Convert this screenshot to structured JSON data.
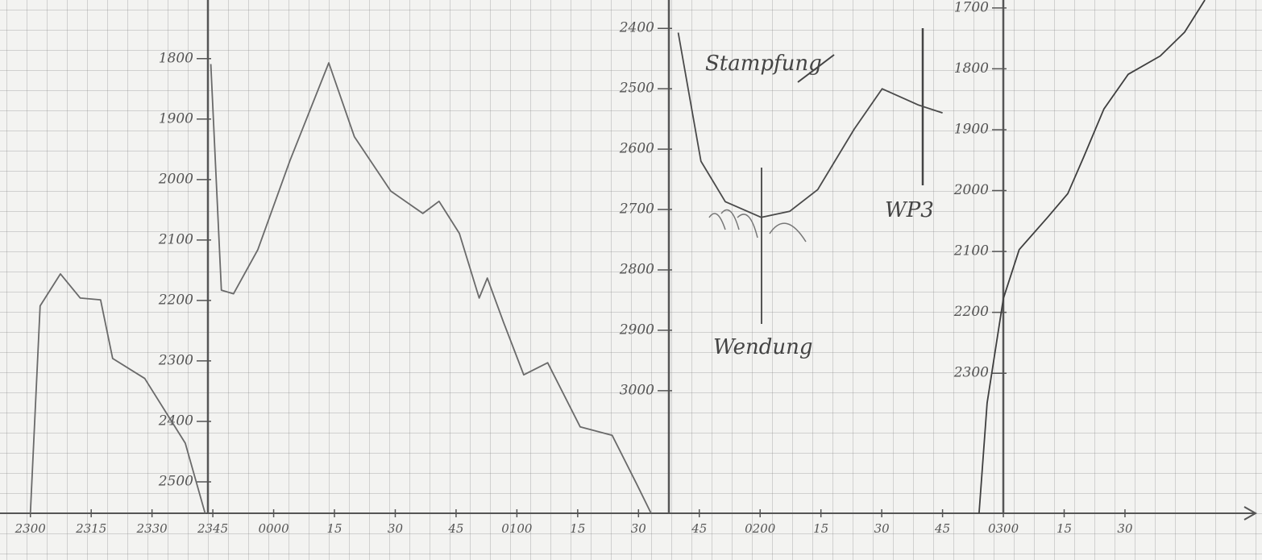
{
  "chart_data": [
    {
      "type": "line",
      "y_reversed": true,
      "color": "#6a6a6a",
      "xlim": [
        -7.5,
        303.8
      ],
      "xticks": [
        {
          "value": 0,
          "label": "2300"
        },
        {
          "value": 15,
          "label": "2315"
        },
        {
          "value": 30,
          "label": "2330"
        },
        {
          "value": 45,
          "label": "2345"
        },
        {
          "value": 60,
          "label": "0000"
        },
        {
          "value": 75,
          "label": "15"
        },
        {
          "value": 90,
          "label": "30"
        },
        {
          "value": 105,
          "label": "45"
        },
        {
          "value": 120,
          "label": "0100"
        },
        {
          "value": 135,
          "label": "15"
        },
        {
          "value": 150,
          "label": "30"
        },
        {
          "value": 165,
          "label": "45"
        },
        {
          "value": 180,
          "label": "0200"
        },
        {
          "value": 195,
          "label": "15"
        },
        {
          "value": 210,
          "label": "30"
        },
        {
          "value": 225,
          "label": "45"
        },
        {
          "value": 240,
          "label": "0300"
        },
        {
          "value": 255,
          "label": "15"
        },
        {
          "value": 270,
          "label": "30"
        }
      ],
      "ylim": [
        1703,
        2552
      ],
      "yticks": [
        1800,
        1900,
        2000,
        2100,
        2200,
        2300,
        2400,
        2500
      ],
      "series": [
        {
          "color": "#6a6a6a",
          "x": [
            0,
            2.4,
            7.4,
            12.3,
            17.3,
            20.3,
            28.2,
            38.2,
            43.1,
            null,
            44.5,
            47.1,
            50.1,
            56.1,
            64.0,
            73.6,
            79.9,
            88.9,
            96.8,
            100.8,
            105.8,
            110.7,
            112.7,
            116.7,
            121.7,
            127.6,
            135.6,
            143.5,
            149.5,
            153.1
          ],
          "values": [
            2552,
            2209,
            2156,
            2196,
            2199,
            2296,
            2329,
            2436,
            2552,
            null,
            1809,
            2183,
            2189,
            2116,
            1969,
            1807,
            1929,
            2019,
            2056,
            2036,
            2089,
            2196,
            2163,
            2236,
            2323,
            2303,
            2409,
            2423,
            2503,
            2552
          ]
        }
      ]
    },
    {
      "type": "line",
      "y_reversed": true,
      "xlim": [
        -7.5,
        303.8
      ],
      "ylim": [
        2353,
        3203
      ],
      "yticks": [
        2400,
        2500,
        2600,
        2700,
        2800,
        2900,
        3000
      ],
      "annotations": [
        "Stampfung",
        "Wendung",
        "WP3"
      ],
      "series": [
        {
          "color": "#4a4a4a",
          "x": [
            159.8,
            165.4,
            171.4,
            180.3,
            187.3,
            194.2,
            203.2,
            210.1,
            219.1,
            225.0
          ],
          "values": [
            2407,
            2620,
            2687,
            2713,
            2703,
            2667,
            2567,
            2500,
            2527,
            2540
          ]
        }
      ]
    },
    {
      "type": "line",
      "y_reversed": true,
      "xlim": [
        -7.5,
        303.8
      ],
      "ylim": [
        1687,
        2530
      ],
      "yticks": [
        1700,
        1800,
        1900,
        2000,
        2100,
        2200,
        2300
      ],
      "series": [
        {
          "color": "#3f3f3f",
          "x": [
            234.0,
            236.0,
            240.0,
            243.9,
            250.9,
            255.9,
            259.8,
            264.8,
            270.8,
            278.7,
            284.7,
            289.7
          ],
          "values": [
            2530,
            2349,
            2177,
            2097,
            2044,
            2005,
            1945,
            1866,
            1809,
            1779,
            1740,
            1687
          ]
        }
      ]
    }
  ]
}
